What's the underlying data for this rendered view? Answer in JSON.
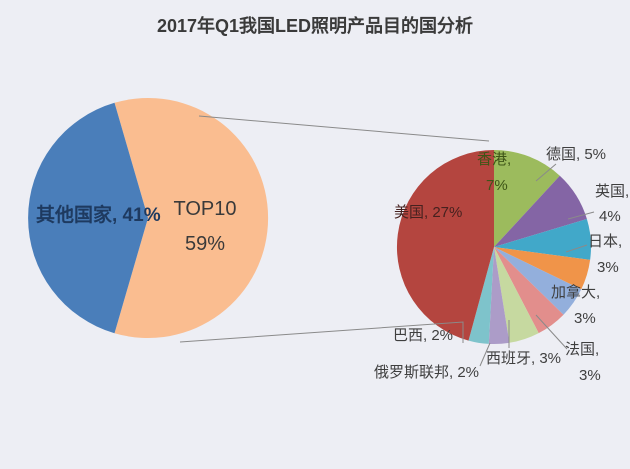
{
  "title": "2017年Q1我国LED照明产品目的国分析",
  "background_color": "#edeef4",
  "line_color": "#8a8a8a",
  "chart_data": [
    {
      "type": "pie",
      "name": "destination-share",
      "title": "2017年Q1我国LED照明产品目的国分析",
      "unit": "%",
      "legend_position": "none",
      "start_angle_deg": -16.2,
      "slices": [
        {
          "id": "top10",
          "label": "TOP10",
          "value": 59,
          "color": "#fabd90",
          "text_color": "#3a3a3a"
        },
        {
          "id": "other-countries",
          "label": "其他国家",
          "value": 41,
          "color": "#4a7eba",
          "text_color": "#1e3a60"
        }
      ]
    },
    {
      "type": "pie",
      "name": "top10-country-breakdown",
      "unit": "% of total exports (pie sums to the 59% TOP10 share)",
      "legend_position": "none",
      "start_angle_deg": 0,
      "slices": [
        {
          "id": "hong-kong",
          "label": "香港",
          "value": 7,
          "color": "#9cbb5d"
        },
        {
          "id": "germany",
          "label": "德国",
          "value": 5,
          "color": "#8465a5"
        },
        {
          "id": "uk",
          "label": "英国",
          "value": 4,
          "color": "#41a8c9"
        },
        {
          "id": "japan",
          "label": "日本",
          "value": 3,
          "color": "#f09449"
        },
        {
          "id": "canada",
          "label": "加拿大",
          "value": 3,
          "color": "#93afdc"
        },
        {
          "id": "france",
          "label": "法国",
          "value": 3,
          "color": "#e28e8c"
        },
        {
          "id": "spain",
          "label": "西班牙",
          "value": 3,
          "color": "#c6d9a0"
        },
        {
          "id": "russia",
          "label": "俄罗斯联邦",
          "value": 2,
          "color": "#ac9cc8"
        },
        {
          "id": "brazil",
          "label": "巴西",
          "value": 2,
          "color": "#7ec3cb"
        },
        {
          "id": "usa",
          "label": "美国",
          "value": 27,
          "color": "#b4453f"
        }
      ]
    }
  ],
  "labels": {
    "other_countries": "其他国家, 41%",
    "top10_line1": "TOP10",
    "top10_line2": "59%",
    "usa": "美国, 27%",
    "hong_kong_line1": "香港,",
    "hong_kong_line2": "7%",
    "germany": "德国, 5%",
    "uk_line1": "英国,",
    "uk_line2": "4%",
    "japan_line1": "日本,",
    "japan_line2": "3%",
    "canada_line1": "加拿大,",
    "canada_line2": "3%",
    "france_line1": "法国,",
    "france_line2": "3%",
    "spain": "西班牙, 3%",
    "russia": "俄罗斯联邦, 2%",
    "brazil": "巴西, 2%"
  }
}
